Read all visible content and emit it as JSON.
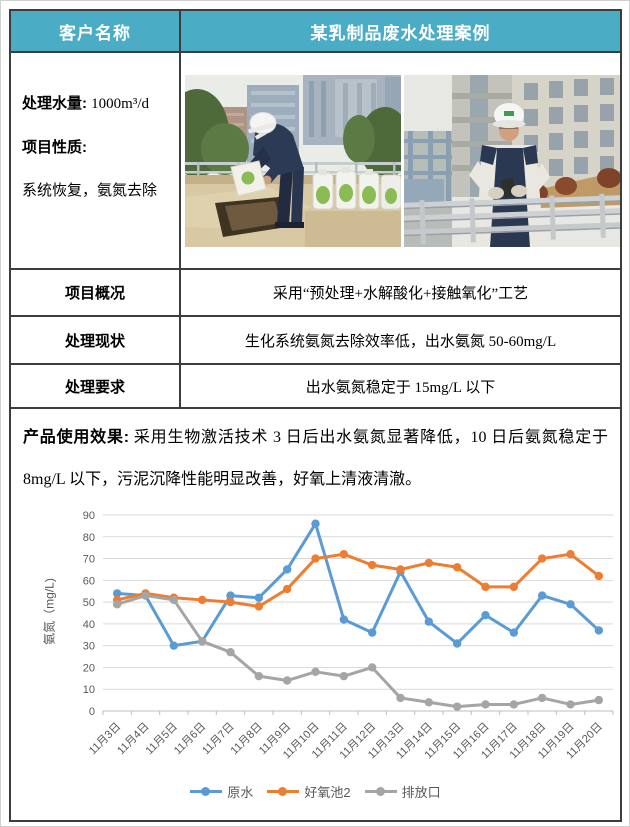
{
  "colors": {
    "header_bg": "#4BACC6",
    "table_border": "#3D3D3D",
    "axis_text": "#595959",
    "gridline": "#D9D9D9",
    "axis_line": "#BFBFBF"
  },
  "header": {
    "customer_label": "客户名称",
    "case_title": "某乳制品废水处理案例"
  },
  "info": {
    "volume_label": "处理水量:",
    "volume_value": "1000m³/d",
    "nature_label": "项目性质:",
    "nature_value": "系统恢复，氨氮去除"
  },
  "summary_rows": [
    {
      "label": "项目概况",
      "value": "采用“预处理+水解酸化+接触氧化”工艺"
    },
    {
      "label": "处理现状",
      "value": "生化系统氨氮去除效率低，出水氨氮 50-60mg/L"
    },
    {
      "label": "处理要求",
      "value": "出水氨氮稳定于 15mg/L 以下"
    }
  ],
  "effect": {
    "label": "产品使用效果:",
    "text": " 采用生物激活技术 3 日后出水氨氮显著降低，10 日后氨氮稳定于 8mg/L 以下，污泥沉降性能明显改善，好氧上清液清澈。"
  },
  "chart_data": {
    "type": "line",
    "title": "",
    "xlabel": "",
    "ylabel": "氨氮（mg/L)",
    "ylim": [
      0,
      90
    ],
    "ytick_step": 10,
    "grid": true,
    "legend_position": "bottom",
    "marker": "circle",
    "categories": [
      "11月3日",
      "11月4日",
      "11月5日",
      "11月6日",
      "11月7日",
      "11月8日",
      "11月9日",
      "11月10日",
      "11月11日",
      "11月12日",
      "11月13日",
      "11月14日",
      "11月15日",
      "11月16日",
      "11月17日",
      "11月18日",
      "11月19日",
      "11月20日"
    ],
    "series": [
      {
        "name": "原水",
        "color": "#5B9BD5",
        "values": [
          54,
          53,
          30,
          32,
          53,
          52,
          65,
          86,
          42,
          36,
          64,
          41,
          31,
          44,
          36,
          53,
          49,
          37
        ]
      },
      {
        "name": "好氧池2",
        "color": "#ED7D31",
        "values": [
          51,
          54,
          52,
          51,
          50,
          48,
          56,
          70,
          72,
          67,
          65,
          68,
          66,
          57,
          57,
          70,
          72,
          62
        ]
      },
      {
        "name": "排放口",
        "color": "#A5A5A5",
        "values": [
          49,
          53,
          51,
          32,
          27,
          16,
          14,
          18,
          16,
          20,
          6,
          4,
          2,
          3,
          3,
          6,
          3,
          5
        ]
      }
    ]
  }
}
